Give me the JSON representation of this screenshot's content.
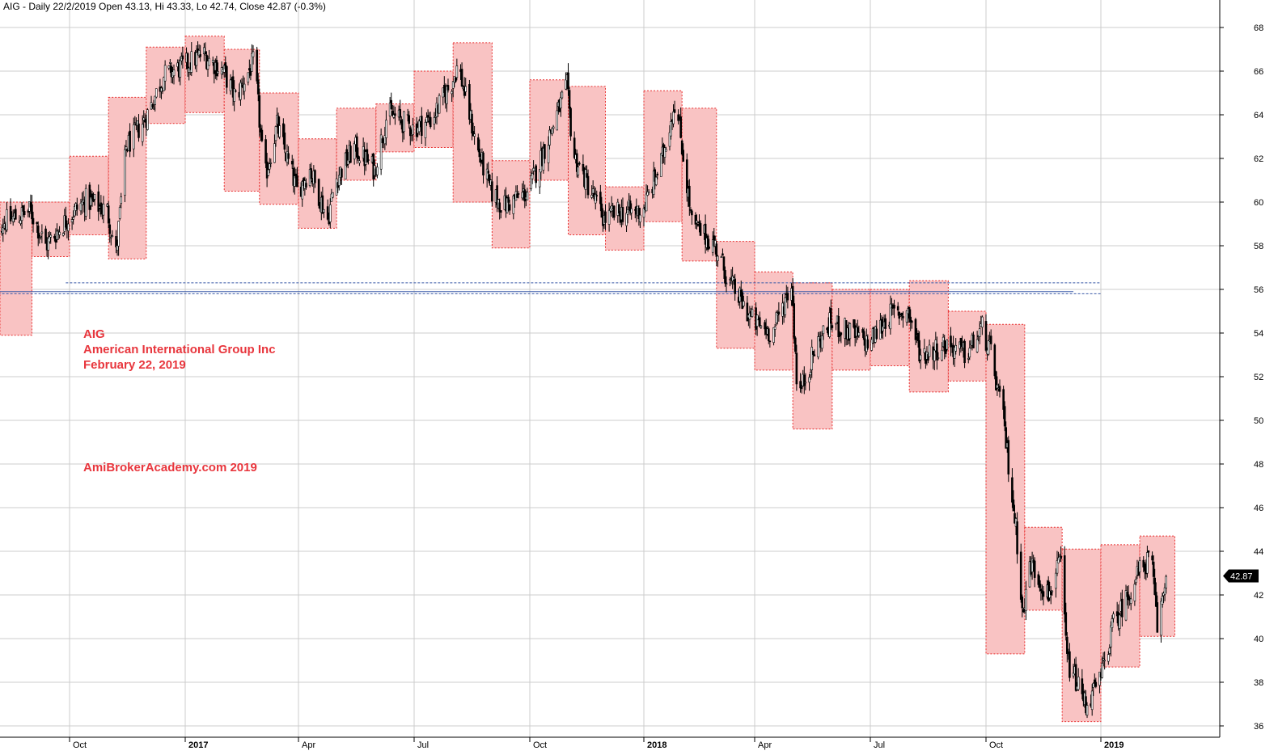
{
  "header": {
    "text": "AIG - Daily 22/2/2019 Open 43.13, Hi 43.33, Lo 42.74, Close 42.87 (-0.3%)"
  },
  "annotations": {
    "ticker": "AIG",
    "company": "American International Group Inc",
    "date": "February 22, 2019",
    "watermark": "AmiBrokerAcademy.com  2019"
  },
  "price_tag": {
    "value": "42.87"
  },
  "colors": {
    "box_fill": "#f9c3c3",
    "box_border": "#e83030",
    "candle": "#000000",
    "grid": "#cccccc",
    "hline": "#3a5aa8",
    "annotation": "#e8363d",
    "price_tag_bg": "#000000"
  },
  "chart_data": {
    "type": "candlestick",
    "ticker": "AIG",
    "y_axis_side": "right",
    "ylim": [
      35.5,
      69
    ],
    "y_ticks": [
      36,
      38,
      40,
      42,
      44,
      46,
      48,
      50,
      52,
      54,
      56,
      58,
      60,
      62,
      64,
      66,
      68
    ],
    "x_ticks": [
      {
        "label": "Oct",
        "date": "2016-10-01",
        "bold": false
      },
      {
        "label": "2017",
        "date": "2017-01-01",
        "bold": true
      },
      {
        "label": "Apr",
        "date": "2017-04-01",
        "bold": false
      },
      {
        "label": "Jul",
        "date": "2017-07-01",
        "bold": false
      },
      {
        "label": "Oct",
        "date": "2017-10-01",
        "bold": false
      },
      {
        "label": "2018",
        "date": "2018-01-01",
        "bold": true
      },
      {
        "label": "Apr",
        "date": "2018-04-01",
        "bold": false
      },
      {
        "label": "Jul",
        "date": "2018-07-01",
        "bold": false
      },
      {
        "label": "Oct",
        "date": "2018-10-01",
        "bold": false
      },
      {
        "label": "2019",
        "date": "2019-01-01",
        "bold": true
      }
    ],
    "x_range": [
      "2016-08-01",
      "2019-03-10"
    ],
    "last_close": 42.87,
    "horizontal_lines": [
      {
        "y": 56.3,
        "start": "2016-09-28",
        "end": "2019-01-01",
        "style": "dashed"
      },
      {
        "y": 55.9,
        "start": "2016-08-05",
        "end": "2018-12-10",
        "style": "solid"
      },
      {
        "y": 55.8,
        "start": "2016-08-05",
        "end": "2019-01-01",
        "style": "dashed"
      }
    ],
    "monthly_boxes": [
      {
        "month": "2016-08",
        "high": 60.0,
        "low": 53.9
      },
      {
        "month": "2016-09",
        "high": 60.0,
        "low": 57.5
      },
      {
        "month": "2016-10",
        "high": 62.1,
        "low": 58.5
      },
      {
        "month": "2016-11",
        "high": 64.8,
        "low": 57.4
      },
      {
        "month": "2016-12",
        "high": 67.1,
        "low": 63.6
      },
      {
        "month": "2017-01",
        "high": 67.6,
        "low": 64.1
      },
      {
        "month": "2017-02",
        "high": 67.0,
        "low": 60.5
      },
      {
        "month": "2017-03",
        "high": 65.0,
        "low": 59.9
      },
      {
        "month": "2017-04",
        "high": 62.9,
        "low": 58.8
      },
      {
        "month": "2017-05",
        "high": 64.3,
        "low": 61.0
      },
      {
        "month": "2017-06",
        "high": 64.5,
        "low": 62.3
      },
      {
        "month": "2017-07",
        "high": 66.0,
        "low": 62.5
      },
      {
        "month": "2017-08",
        "high": 67.3,
        "low": 60.0
      },
      {
        "month": "2017-09",
        "high": 61.9,
        "low": 57.9
      },
      {
        "month": "2017-10",
        "high": 65.6,
        "low": 61.0
      },
      {
        "month": "2017-11",
        "high": 65.3,
        "low": 58.5
      },
      {
        "month": "2017-12",
        "high": 60.7,
        "low": 57.8
      },
      {
        "month": "2018-01",
        "high": 65.1,
        "low": 59.1
      },
      {
        "month": "2018-02",
        "high": 64.3,
        "low": 57.3
      },
      {
        "month": "2018-03",
        "high": 58.2,
        "low": 53.3
      },
      {
        "month": "2018-04",
        "high": 56.8,
        "low": 52.3
      },
      {
        "month": "2018-05",
        "high": 56.3,
        "low": 49.6
      },
      {
        "month": "2018-06",
        "high": 56.0,
        "low": 52.3
      },
      {
        "month": "2018-07",
        "high": 56.0,
        "low": 52.5
      },
      {
        "month": "2018-08",
        "high": 56.4,
        "low": 51.3
      },
      {
        "month": "2018-09",
        "high": 55.0,
        "low": 51.8
      },
      {
        "month": "2018-10",
        "high": 54.4,
        "low": 39.3
      },
      {
        "month": "2018-11",
        "high": 45.1,
        "low": 41.3
      },
      {
        "month": "2018-12",
        "high": 44.1,
        "low": 36.2
      },
      {
        "month": "2019-01",
        "high": 44.3,
        "low": 38.7
      },
      {
        "month": "2019-02",
        "high": 44.7,
        "low": 40.1
      }
    ],
    "closes_anchor_path": [
      [
        "2016-08-01",
        58.9
      ],
      [
        "2016-08-15",
        59.2
      ],
      [
        "2016-08-31",
        59.6
      ],
      [
        "2016-09-12",
        58.0
      ],
      [
        "2016-09-30",
        59.3
      ],
      [
        "2016-10-14",
        60.1
      ],
      [
        "2016-10-31",
        59.6
      ],
      [
        "2016-11-07",
        57.6
      ],
      [
        "2016-11-15",
        62.5
      ],
      [
        "2016-11-30",
        63.8
      ],
      [
        "2016-12-15",
        65.8
      ],
      [
        "2016-12-30",
        66.2
      ],
      [
        "2017-01-15",
        66.8
      ],
      [
        "2017-01-31",
        66.0
      ],
      [
        "2017-02-10",
        64.8
      ],
      [
        "2017-02-25",
        66.5
      ],
      [
        "2017-03-05",
        61.0
      ],
      [
        "2017-03-15",
        63.5
      ],
      [
        "2017-03-31",
        60.5
      ],
      [
        "2017-04-10",
        61.5
      ],
      [
        "2017-04-24",
        59.2
      ],
      [
        "2017-04-30",
        61.0
      ],
      [
        "2017-05-15",
        62.5
      ],
      [
        "2017-05-31",
        61.5
      ],
      [
        "2017-06-10",
        64.1
      ],
      [
        "2017-06-30",
        63.4
      ],
      [
        "2017-07-15",
        63.8
      ],
      [
        "2017-07-31",
        65.5
      ],
      [
        "2017-08-05",
        66.3
      ],
      [
        "2017-08-20",
        62.5
      ],
      [
        "2017-08-31",
        60.5
      ],
      [
        "2017-09-10",
        59.8
      ],
      [
        "2017-09-30",
        60.5
      ],
      [
        "2017-10-10",
        62.0
      ],
      [
        "2017-10-31",
        65.3
      ],
      [
        "2017-11-05",
        62.2
      ],
      [
        "2017-11-30",
        59.2
      ],
      [
        "2017-12-10",
        59.5
      ],
      [
        "2017-12-31",
        59.6
      ],
      [
        "2018-01-15",
        61.8
      ],
      [
        "2018-01-26",
        64.6
      ],
      [
        "2018-01-31",
        63.0
      ],
      [
        "2018-02-09",
        59.0
      ],
      [
        "2018-02-28",
        58.0
      ],
      [
        "2018-03-10",
        56.5
      ],
      [
        "2018-03-31",
        54.5
      ],
      [
        "2018-04-15",
        54.0
      ],
      [
        "2018-04-30",
        56.3
      ],
      [
        "2018-05-05",
        51.0
      ],
      [
        "2018-05-20",
        53.5
      ],
      [
        "2018-05-31",
        54.5
      ],
      [
        "2018-06-15",
        54.0
      ],
      [
        "2018-06-30",
        53.5
      ],
      [
        "2018-07-15",
        54.8
      ],
      [
        "2018-07-31",
        55.0
      ],
      [
        "2018-08-10",
        53.0
      ],
      [
        "2018-08-31",
        53.5
      ],
      [
        "2018-09-15",
        53.0
      ],
      [
        "2018-09-28",
        54.2
      ],
      [
        "2018-10-05",
        53.0
      ],
      [
        "2018-10-15",
        50.0
      ],
      [
        "2018-10-25",
        45.0
      ],
      [
        "2018-10-31",
        41.0
      ],
      [
        "2018-11-05",
        43.5
      ],
      [
        "2018-11-20",
        42.0
      ],
      [
        "2018-11-30",
        43.5
      ],
      [
        "2018-12-05",
        39.0
      ],
      [
        "2018-12-20",
        37.0
      ],
      [
        "2018-12-31",
        38.0
      ],
      [
        "2019-01-10",
        40.5
      ],
      [
        "2019-01-31",
        43.0
      ],
      [
        "2019-02-10",
        43.8
      ],
      [
        "2019-02-15",
        40.5
      ],
      [
        "2019-02-22",
        42.87
      ]
    ]
  }
}
